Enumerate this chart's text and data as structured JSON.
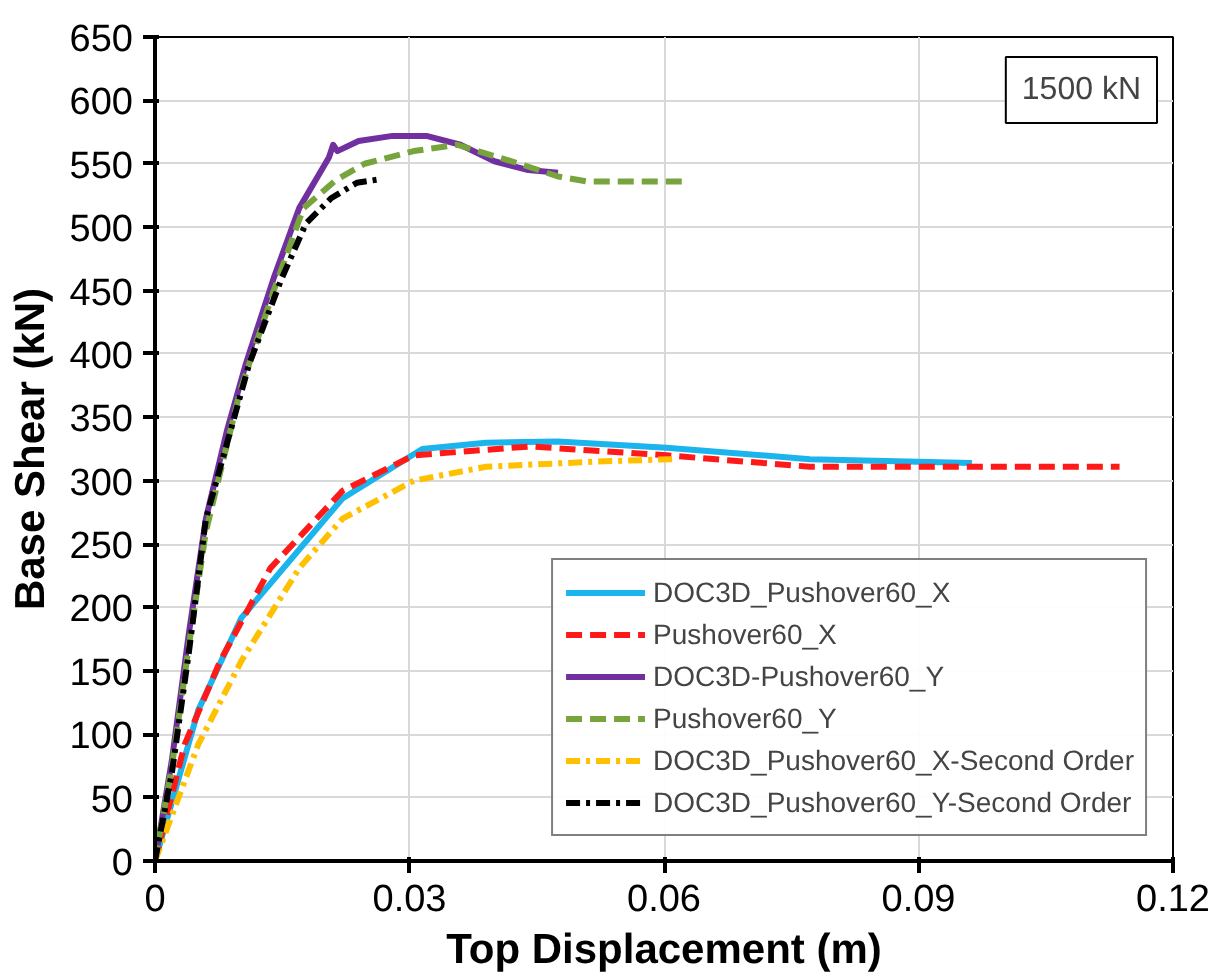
{
  "chart_data": {
    "type": "line",
    "xlabel": "Top Displacement (m)",
    "ylabel": "Base Shear (kN)",
    "xlim": [
      0,
      0.12
    ],
    "ylim": [
      0,
      650
    ],
    "xticks": [
      0,
      0.03,
      0.06,
      0.09,
      0.12
    ],
    "yticks": [
      0,
      50,
      100,
      150,
      200,
      250,
      300,
      350,
      400,
      450,
      500,
      550,
      600,
      650
    ],
    "grid": true,
    "legend": "bottom right",
    "annotations": [
      "1500 kN"
    ],
    "series": [
      {
        "name": "DOC3D_Pushover60_X",
        "color": "#1cb4ec",
        "line_style": "solid",
        "x": [
          0,
          0.0051,
          0.0102,
          0.0221,
          0.0315,
          0.039,
          0.0475,
          0.0603,
          0.0772,
          0.0963
        ],
        "values": [
          0,
          119,
          192,
          286,
          325,
          330,
          331,
          326,
          317,
          314
        ]
      },
      {
        "name": "Pushover60_X",
        "color": "#ff1a1a",
        "line_style": "dashed",
        "x": [
          0,
          0.0035,
          0.0077,
          0.0136,
          0.0221,
          0.0305,
          0.0442,
          0.0603,
          0.0772,
          0.1137
        ],
        "values": [
          0,
          92,
          158,
          231,
          292,
          320,
          327,
          320,
          311,
          311
        ]
      },
      {
        "name": "DOC3D-Pushover60_Y",
        "color": "#7030a0",
        "line_style": "solid",
        "x": [
          0,
          0.002,
          0.004,
          0.006,
          0.0085,
          0.0107,
          0.014,
          0.017,
          0.0205,
          0.021,
          0.0215,
          0.024,
          0.028,
          0.032,
          0.036,
          0.04,
          0.044,
          0.0475
        ],
        "values": [
          0,
          80,
          180,
          270,
          340,
          392,
          460,
          515,
          555,
          565,
          560,
          568,
          572,
          572,
          565,
          552,
          545,
          543
        ]
      },
      {
        "name": "Pushover60_Y",
        "color": "#77a43c",
        "line_style": "dashed",
        "x": [
          0,
          0.002,
          0.004,
          0.006,
          0.01,
          0.014,
          0.0175,
          0.0213,
          0.0247,
          0.0305,
          0.0356,
          0.0425,
          0.0475,
          0.051,
          0.0628
        ],
        "values": [
          0,
          75,
          170,
          260,
          370,
          450,
          515,
          537,
          550,
          560,
          565,
          551,
          540,
          536,
          536
        ]
      },
      {
        "name": "DOC3D_Pushover60_X-Second Order",
        "color": "#ffc000",
        "line_style": "dashdot",
        "x": [
          0,
          0.0051,
          0.0102,
          0.017,
          0.0221,
          0.0305,
          0.039,
          0.0518,
          0.061
        ],
        "values": [
          0,
          92,
          158,
          231,
          270,
          300,
          311,
          315,
          317
        ]
      },
      {
        "name": "DOC3D_Pushover60_Y-Second Order",
        "color": "#000000",
        "line_style": "dashdot",
        "x": [
          0,
          0.002,
          0.004,
          0.006,
          0.0111,
          0.0149,
          0.0178,
          0.0208,
          0.0238,
          0.0267
        ],
        "values": [
          0,
          70,
          165,
          270,
          392,
          459,
          503,
          523,
          535,
          538
        ]
      }
    ]
  }
}
